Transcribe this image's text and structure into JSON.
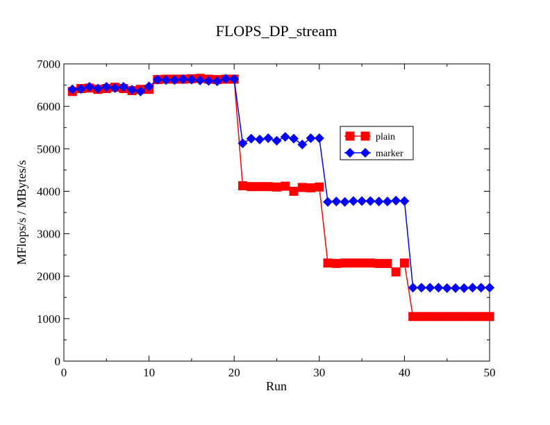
{
  "chart_data": {
    "type": "line",
    "title": "FLOPS_DP_stream",
    "xlabel": "Run",
    "ylabel": "MFlops/s / MBytes/s",
    "xlim": [
      0,
      50
    ],
    "ylim": [
      0,
      7000
    ],
    "xticks": [
      0,
      10,
      20,
      30,
      40,
      50
    ],
    "yticks": [
      0,
      1000,
      2000,
      3000,
      4000,
      5000,
      6000,
      7000
    ],
    "grid": false,
    "legend_position": "center-right",
    "x": [
      1,
      2,
      3,
      4,
      5,
      6,
      7,
      8,
      9,
      10,
      11,
      12,
      13,
      14,
      15,
      16,
      17,
      18,
      19,
      20,
      21,
      22,
      23,
      24,
      25,
      26,
      27,
      28,
      29,
      30,
      31,
      32,
      33,
      34,
      35,
      36,
      37,
      38,
      39,
      40,
      41,
      42,
      43,
      44,
      45,
      46,
      47,
      48,
      49,
      50
    ],
    "series": [
      {
        "name": "plain",
        "color": "#ff0000",
        "marker": "square",
        "values": [
          6350,
          6420,
          6430,
          6400,
          6420,
          6450,
          6420,
          6370,
          6400,
          6400,
          6630,
          6640,
          6640,
          6640,
          6650,
          6660,
          6640,
          6630,
          6640,
          6640,
          4130,
          4110,
          4110,
          4110,
          4100,
          4120,
          4000,
          4090,
          4080,
          4100,
          2310,
          2300,
          2310,
          2310,
          2310,
          2310,
          2300,
          2300,
          2100,
          2310,
          1050,
          1050,
          1050,
          1050,
          1050,
          1050,
          1050,
          1050,
          1050,
          1050
        ]
      },
      {
        "name": "marker",
        "color": "#0000ff",
        "marker": "diamond",
        "values": [
          6400,
          6410,
          6460,
          6420,
          6460,
          6430,
          6460,
          6390,
          6350,
          6470,
          6630,
          6620,
          6620,
          6640,
          6630,
          6610,
          6600,
          6590,
          6650,
          6640,
          5130,
          5240,
          5220,
          5250,
          5190,
          5280,
          5240,
          5100,
          5250,
          5250,
          3750,
          3760,
          3750,
          3770,
          3770,
          3770,
          3760,
          3760,
          3780,
          3770,
          1730,
          1730,
          1730,
          1730,
          1720,
          1720,
          1720,
          1730,
          1730,
          1730
        ]
      }
    ]
  }
}
